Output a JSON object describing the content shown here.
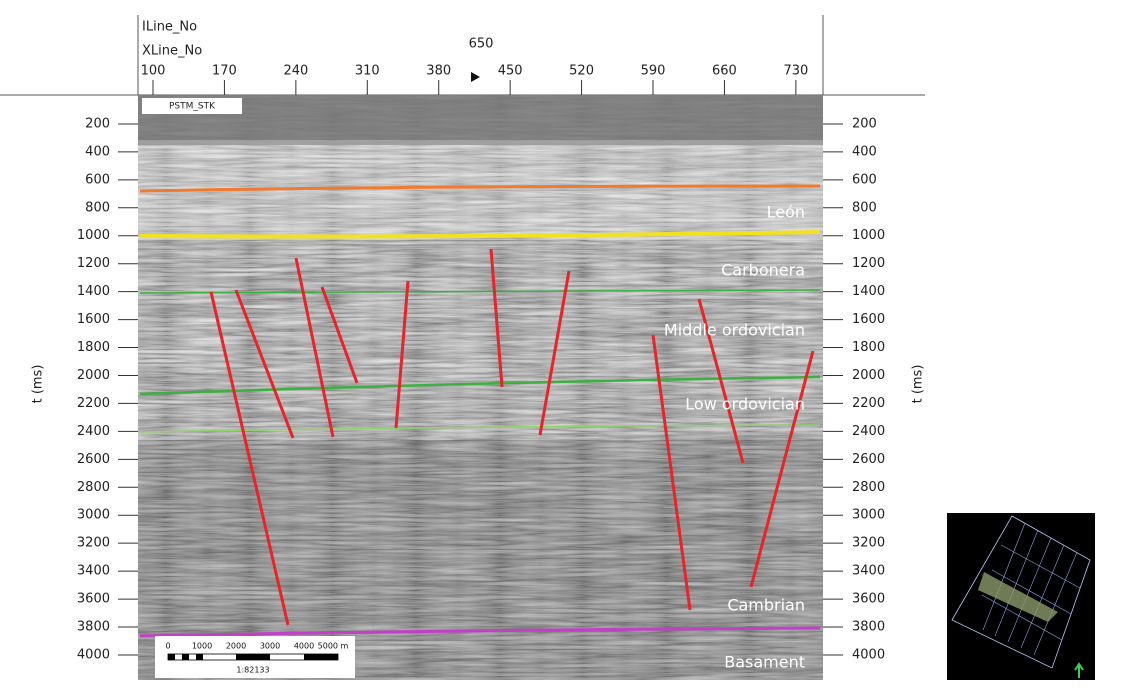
{
  "header": {
    "inline_label": "ILine_No",
    "xline_label": "XLine_No",
    "inline_value": 650,
    "xline_ticks": [
      100,
      170,
      240,
      310,
      380,
      450,
      520,
      590,
      660,
      730
    ]
  },
  "time_axis": {
    "label": "t (ms)",
    "ticks": [
      200,
      400,
      600,
      800,
      1000,
      1200,
      1400,
      1600,
      1800,
      2000,
      2200,
      2400,
      2600,
      2800,
      3000,
      3200,
      3400,
      3600,
      3800,
      4000
    ]
  },
  "section_label": "PSTM_STK",
  "horizons": [
    "León",
    "Carbonera",
    "Middle ordovician",
    "Low ordovician",
    "Cambrian",
    "Basament"
  ],
  "scale_bar": {
    "labels": [
      "0",
      "1000",
      "2000",
      "3000",
      "4000",
      "5000 m"
    ],
    "ratio": "1:82133"
  }
}
